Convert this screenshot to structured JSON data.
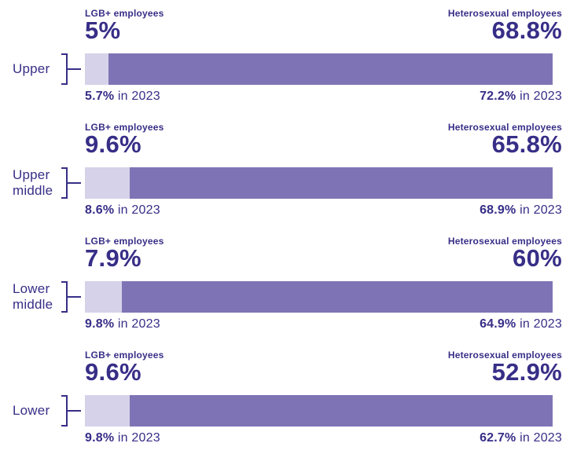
{
  "colors": {
    "ink": "#372e87",
    "lgb_segment": "#d6d2e9",
    "het_segment": "#7e74b5",
    "background": "#ffffff"
  },
  "chart_data": {
    "type": "bar",
    "orientation": "horizontal",
    "title": "",
    "categories": [
      "Upper",
      "Upper middle",
      "Lower middle",
      "Lower"
    ],
    "series": [
      {
        "name": "LGB+ employees",
        "values": [
          5,
          9.6,
          7.9,
          9.6
        ]
      },
      {
        "name": "LGB+ employees in 2023",
        "values": [
          5.7,
          8.6,
          9.8,
          9.8
        ]
      },
      {
        "name": "Heterosexual employees",
        "values": [
          68.8,
          65.8,
          60,
          52.9
        ]
      },
      {
        "name": "Heterosexual employees in 2023",
        "values": [
          72.2,
          68.9,
          64.9,
          62.7
        ]
      }
    ],
    "units": "%",
    "xlim": [
      0,
      100
    ],
    "grid": false,
    "legend_position": "none",
    "layout_note": "Each row is a full-width 100% bar; light segment width equals the LGB+ percentage, dark fill is the remainder. Current value labels above the bar, 2023 comparison captions below."
  },
  "sections": [
    {
      "category": "Upper",
      "lgb_label": "LGB+ employees",
      "lgb_value": "5%",
      "lgb_pct": 5,
      "lgb_caption_num": "5.7%",
      "lgb_caption_suffix": " in 2023",
      "het_label": "Heterosexual employees",
      "het_value": "68.8%",
      "het_caption_num": "72.2%",
      "het_caption_suffix": " in 2023"
    },
    {
      "category": "Upper middle",
      "lgb_label": "LGB+ employees",
      "lgb_value": "9.6%",
      "lgb_pct": 9.6,
      "lgb_caption_num": "8.6%",
      "lgb_caption_suffix": " in 2023",
      "het_label": "Heterosexual employees",
      "het_value": "65.8%",
      "het_caption_num": "68.9%",
      "het_caption_suffix": " in 2023"
    },
    {
      "category": "Lower middle",
      "lgb_label": "LGB+ employees",
      "lgb_value": "7.9%",
      "lgb_pct": 7.9,
      "lgb_caption_num": "9.8%",
      "lgb_caption_suffix": " in 2023",
      "het_label": "Heterosexual employees",
      "het_value": "60%",
      "het_caption_num": "64.9%",
      "het_caption_suffix": " in 2023"
    },
    {
      "category": "Lower",
      "lgb_label": "LGB+ employees",
      "lgb_value": "9.6%",
      "lgb_pct": 9.6,
      "lgb_caption_num": "9.8%",
      "lgb_caption_suffix": " in 2023",
      "het_label": "Heterosexual employees",
      "het_value": "52.9%",
      "het_caption_num": "62.7%",
      "het_caption_suffix": " in 2023"
    }
  ]
}
